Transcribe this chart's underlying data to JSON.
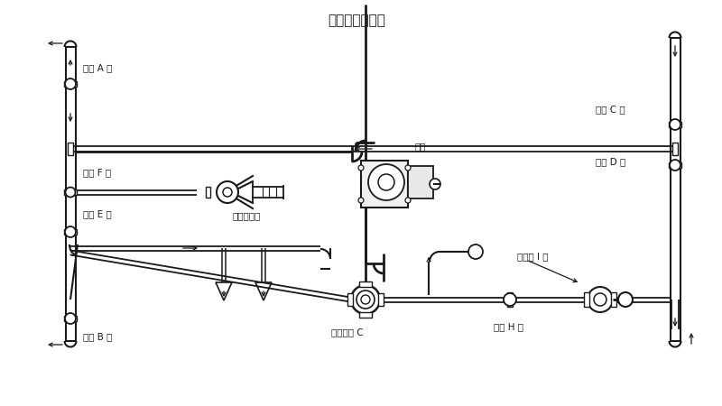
{
  "title": "洒水、浇灌花木",
  "bg_color": "#ffffff",
  "lc": "#1a1a1a",
  "labels": {
    "ball_valve_A": "球阀 A 开",
    "ball_valve_B": "球阀 B 开",
    "ball_valve_C": "球阀 C 开",
    "ball_valve_D": "球阀 D 开",
    "ball_valve_E": "球阀 E 开",
    "ball_valve_F": "球阀 F 关",
    "ball_valve_H": "球阀 H 关",
    "three_way": "三通球阀 C",
    "fire_hydrant": "消防栓 I 关",
    "water_cannon": "洒水炮出口",
    "pump": "水泵"
  }
}
